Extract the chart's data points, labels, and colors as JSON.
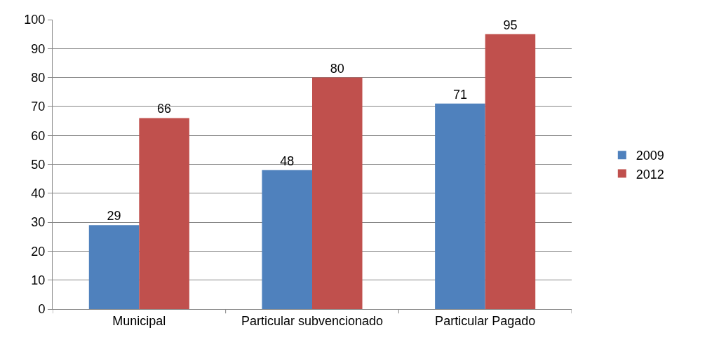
{
  "chart_data": {
    "type": "bar",
    "categories": [
      "Municipal",
      "Particular subvencionado",
      "Particular Pagado"
    ],
    "series": [
      {
        "name": "2009",
        "color": "#4f81bd",
        "values": [
          29,
          48,
          71
        ]
      },
      {
        "name": "2012",
        "color": "#c0504d",
        "values": [
          66,
          80,
          95
        ]
      }
    ],
    "ylim": [
      0,
      100
    ],
    "yticks": [
      0,
      10,
      20,
      30,
      40,
      50,
      60,
      70,
      80,
      90,
      100
    ],
    "grid": "y",
    "legend": "right",
    "data_labels": true
  }
}
